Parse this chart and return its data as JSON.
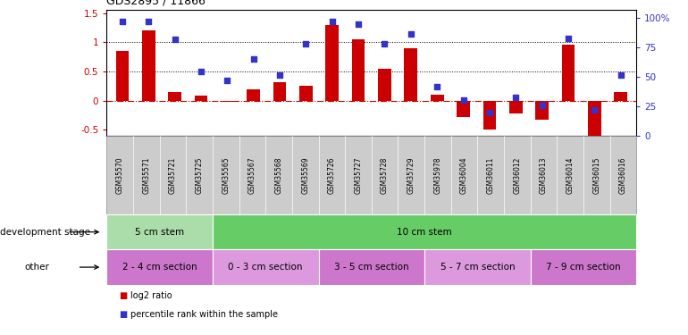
{
  "title": "GDS2895 / 11866",
  "categories": [
    "GSM35570",
    "GSM35571",
    "GSM35721",
    "GSM35725",
    "GSM35565",
    "GSM35567",
    "GSM35568",
    "GSM35569",
    "GSM35726",
    "GSM35727",
    "GSM35728",
    "GSM35729",
    "GSM35978",
    "GSM36004",
    "GSM36011",
    "GSM36012",
    "GSM36013",
    "GSM36014",
    "GSM36015",
    "GSM36016"
  ],
  "log2_ratio": [
    0.85,
    1.2,
    0.15,
    0.08,
    -0.02,
    0.2,
    0.32,
    0.25,
    1.3,
    1.05,
    0.55,
    0.9,
    0.1,
    -0.28,
    -0.5,
    -0.22,
    -0.33,
    0.95,
    -0.65,
    0.15
  ],
  "percentile": [
    97,
    97,
    82,
    55,
    47,
    65,
    52,
    78,
    97,
    95,
    78,
    87,
    42,
    30,
    20,
    33,
    26,
    83,
    22,
    52
  ],
  "bar_color": "#cc0000",
  "dot_color": "#3333cc",
  "ylim_left": [
    -0.6,
    1.55
  ],
  "ylim_right": [
    0,
    107
  ],
  "yticks_left": [
    -0.5,
    0.0,
    0.5,
    1.0,
    1.5
  ],
  "ytick_labels_left": [
    "-0.5",
    "0",
    "0.5",
    "1",
    "1.5"
  ],
  "yticks_right": [
    0,
    25,
    50,
    75,
    100
  ],
  "ytick_labels_right": [
    "0",
    "25",
    "50",
    "75",
    "100%"
  ],
  "hlines": [
    0.5,
    1.0
  ],
  "zero_line_color": "#cc0000",
  "zero_line_style": "-.",
  "hline_style": ":",
  "hline_color": "black",
  "dev_stage_groups": [
    {
      "label": "5 cm stem",
      "start": 0,
      "end": 4,
      "color": "#aaddaa"
    },
    {
      "label": "10 cm stem",
      "start": 4,
      "end": 20,
      "color": "#66cc66"
    }
  ],
  "other_groups": [
    {
      "label": "2 - 4 cm section",
      "start": 0,
      "end": 4,
      "color": "#cc77cc"
    },
    {
      "label": "0 - 3 cm section",
      "start": 4,
      "end": 8,
      "color": "#dd99dd"
    },
    {
      "label": "3 - 5 cm section",
      "start": 8,
      "end": 12,
      "color": "#cc77cc"
    },
    {
      "label": "5 - 7 cm section",
      "start": 12,
      "end": 16,
      "color": "#dd99dd"
    },
    {
      "label": "7 - 9 cm section",
      "start": 16,
      "end": 20,
      "color": "#cc77cc"
    }
  ],
  "legend_labels": [
    "log2 ratio",
    "percentile rank within the sample"
  ],
  "legend_colors": [
    "#cc0000",
    "#3333cc"
  ],
  "bg_color": "#ffffff",
  "tick_color_left": "#cc0000",
  "tick_color_right": "#3333cc",
  "group_row_labels": [
    "development stage",
    "other"
  ],
  "xtick_bg": "#cccccc"
}
